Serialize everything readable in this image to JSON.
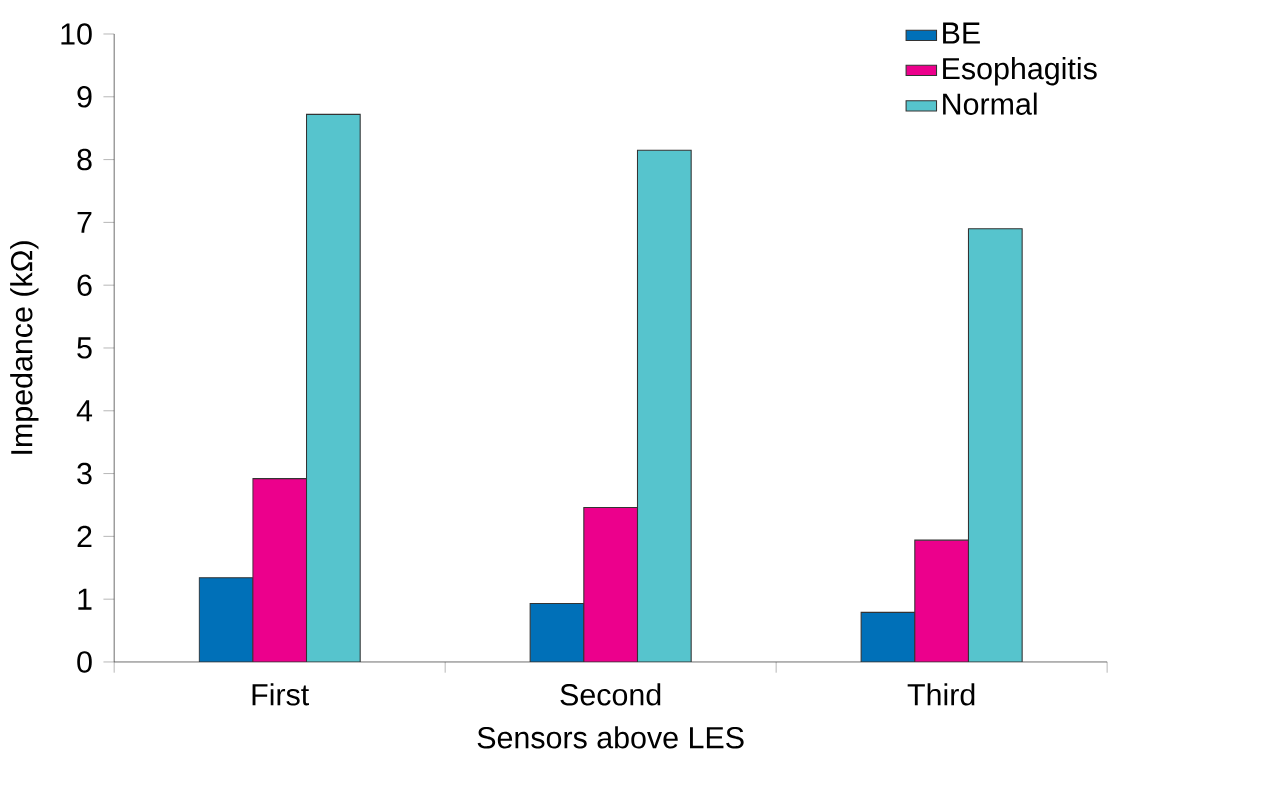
{
  "chart_data": {
    "type": "bar",
    "xlabel": "Sensors above LES",
    "ylabel": "Impedance (kΩ)",
    "categories": [
      "First",
      "Second",
      "Third"
    ],
    "series": [
      {
        "name": "BE",
        "color": "#0070b8",
        "values": [
          1.34,
          0.93,
          0.79
        ]
      },
      {
        "name": "Esophagitis",
        "color": "#ec008c",
        "values": [
          2.92,
          2.46,
          1.94
        ]
      },
      {
        "name": "Normal",
        "color": "#56c4cd",
        "values": [
          8.72,
          8.15,
          6.9
        ]
      }
    ],
    "ylim": [
      0,
      10
    ],
    "yticks": [
      0,
      1,
      2,
      3,
      4,
      5,
      6,
      7,
      8,
      9,
      10
    ],
    "legend": "top right"
  }
}
